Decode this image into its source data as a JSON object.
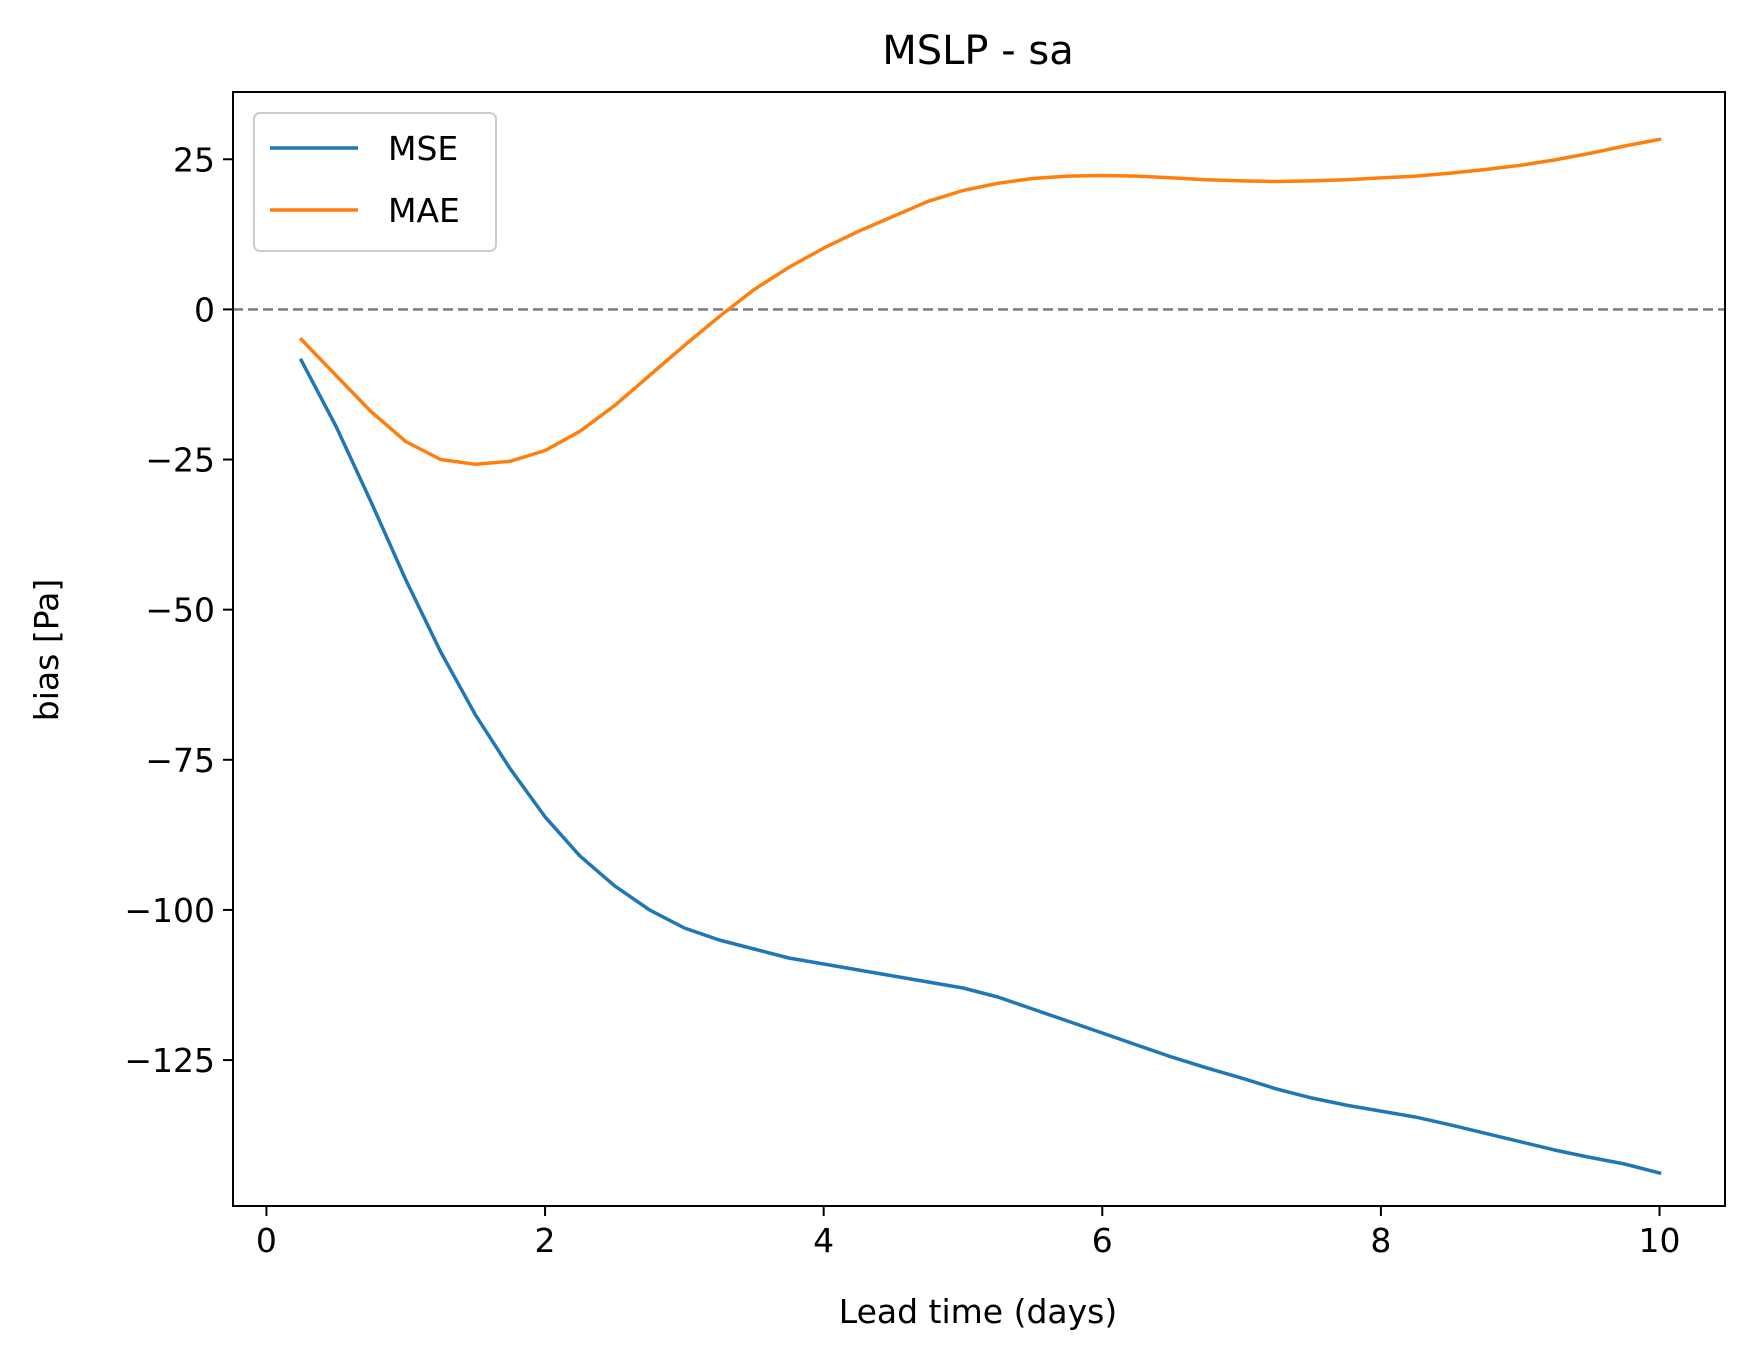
{
  "chart_data": {
    "type": "line",
    "title": "MSLP - sa",
    "xlabel": "Lead time (days)",
    "ylabel": "bias [Pa]",
    "xlim": [
      -0.24,
      10.47
    ],
    "ylim": [
      -149.3,
      36.2
    ],
    "xticks": [
      0,
      2,
      4,
      6,
      8,
      10
    ],
    "xtick_labels": [
      "0",
      "2",
      "4",
      "6",
      "8",
      "10"
    ],
    "yticks": [
      25,
      0,
      -25,
      -50,
      -75,
      -100,
      -125
    ],
    "ytick_labels": [
      "25",
      "0",
      "−25",
      "−50",
      "−75",
      "−100",
      "−125"
    ],
    "grid": false,
    "legend_position": "top-left",
    "reference_line": {
      "y": 0,
      "style": "dashed",
      "color": "#808080"
    },
    "x": [
      0.25,
      0.5,
      0.75,
      1.0,
      1.25,
      1.5,
      1.75,
      2.0,
      2.25,
      2.5,
      2.75,
      3.0,
      3.25,
      3.5,
      3.75,
      4.0,
      4.25,
      4.5,
      4.75,
      5.0,
      5.25,
      5.5,
      5.75,
      6.0,
      6.25,
      6.5,
      6.75,
      7.0,
      7.25,
      7.5,
      7.75,
      8.0,
      8.25,
      8.5,
      8.75,
      9.0,
      9.25,
      9.5,
      9.75,
      10.0
    ],
    "series": [
      {
        "name": "MSE",
        "color": "#1f77b4",
        "values": [
          -8.5,
          -19.5,
          -32,
          -45,
          -57,
          -67.5,
          -76.5,
          -84.5,
          -91,
          -96,
          -100,
          -103,
          -105,
          -106.5,
          -108,
          -109,
          -110,
          -111,
          -112,
          -113,
          -114.5,
          -116.5,
          -118.5,
          -120.5,
          -122.5,
          -124.5,
          -126.3,
          -128,
          -129.8,
          -131.3,
          -132.5,
          -133.5,
          -134.5,
          -135.8,
          -137.2,
          -138.6,
          -140,
          -141.2,
          -142.3,
          -143.8
        ]
      },
      {
        "name": "MAE",
        "color": "#ff7f0e",
        "values": [
          -5,
          -11,
          -17,
          -22,
          -25,
          -25.8,
          -25.3,
          -23.5,
          -20.3,
          -16,
          -11,
          -6,
          -1.2,
          3.3,
          7,
          10.2,
          13,
          15.5,
          18,
          19.8,
          21,
          21.8,
          22.2,
          22.3,
          22.2,
          21.9,
          21.6,
          21.4,
          21.3,
          21.4,
          21.6,
          21.9,
          22.2,
          22.7,
          23.3,
          24,
          24.9,
          26,
          27.2,
          28.3
        ]
      }
    ]
  }
}
